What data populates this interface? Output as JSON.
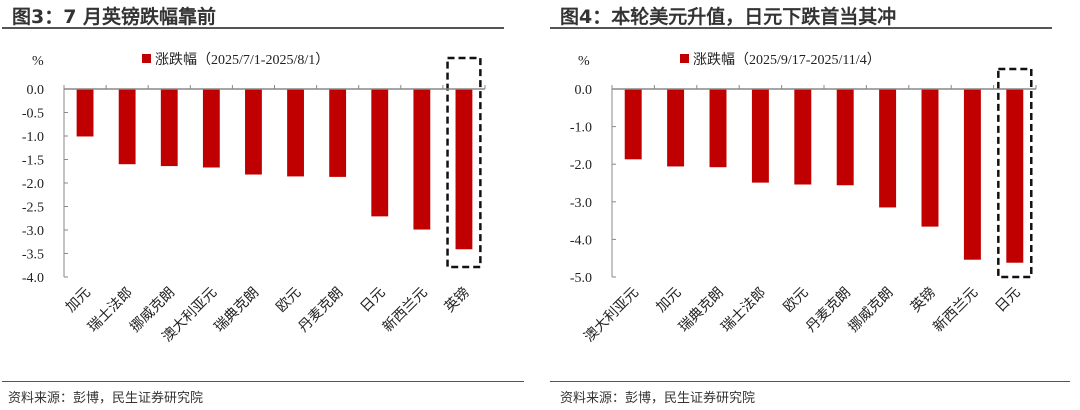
{
  "colors": {
    "bar": "#C00000",
    "axis": "#888888",
    "highlight_box": "#111111"
  },
  "chart_data": [
    {
      "type": "bar",
      "title": "图3：7 月英镑跌幅靠前",
      "ylabel": "%",
      "legend": "涨跌幅（2025/7/1-2025/8/1）",
      "legend_position": "top",
      "categories": [
        "加元",
        "瑞士法郎",
        "挪威克朗",
        "澳大利亚元",
        "瑞典克朗",
        "欧元",
        "丹麦克朗",
        "日元",
        "新西兰元",
        "英镑"
      ],
      "series": [
        {
          "name": "涨跌幅（2025/7/1-2025/8/1）",
          "values": [
            -1.01,
            -1.6,
            -1.64,
            -1.67,
            -1.82,
            -1.86,
            -1.87,
            -2.71,
            -2.99,
            -3.41
          ]
        }
      ],
      "ylim": [
        -4.0,
        0.0
      ],
      "yticks": [
        "0.0",
        "-0.5",
        "-1.0",
        "-1.5",
        "-2.0",
        "-2.5",
        "-3.0",
        "-3.5",
        "-4.0"
      ],
      "ytick_values": [
        0,
        -0.5,
        -1,
        -1.5,
        -2,
        -2.5,
        -3,
        -3.5,
        -4
      ],
      "grid": false,
      "highlight": "英镑",
      "source": "资料来源：彭博，民生证券研究院"
    },
    {
      "type": "bar",
      "title": "图4：本轮美元升值，日元下跌首当其冲",
      "ylabel": "%",
      "legend": "涨跌幅（2025/9/17-2025/11/4）",
      "legend_position": "top",
      "categories": [
        "澳大利亚元",
        "加元",
        "瑞典克朗",
        "瑞士法郎",
        "欧元",
        "丹麦克朗",
        "挪威克朗",
        "英镑",
        "新西兰元",
        "日元"
      ],
      "series": [
        {
          "name": "涨跌幅（2025/9/17-2025/11/4）",
          "values": [
            -1.87,
            -2.06,
            -2.08,
            -2.49,
            -2.54,
            -2.56,
            -3.15,
            -3.66,
            -4.54,
            -4.62
          ]
        }
      ],
      "ylim": [
        -5.0,
        0.0
      ],
      "yticks": [
        "0.0",
        "-1.0",
        "-2.0",
        "-3.0",
        "-4.0",
        "-5.0"
      ],
      "ytick_values": [
        0,
        -1,
        -2,
        -3,
        -4,
        -5
      ],
      "grid": false,
      "highlight": "日元",
      "source": "资料来源：彭博，民生证券研究院"
    }
  ]
}
